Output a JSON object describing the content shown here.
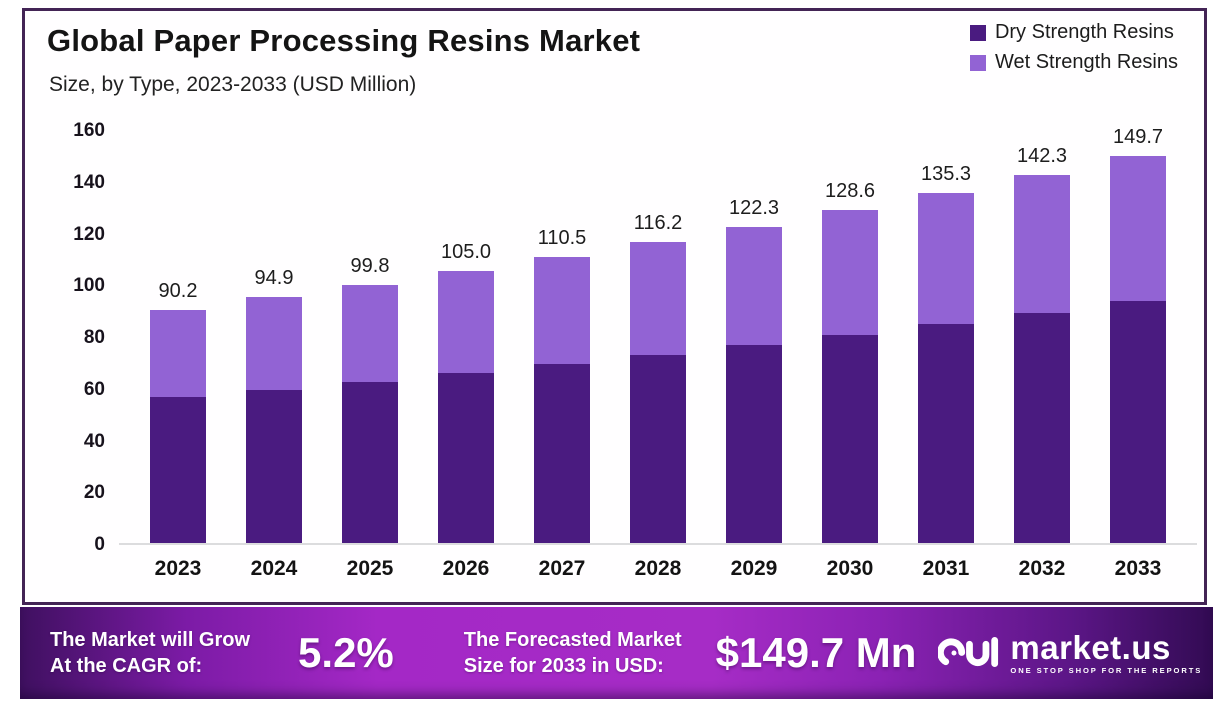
{
  "header": {
    "title": "Global Paper Processing Resins Market",
    "subtitle": "Size, by Type, 2023-2033 (USD Million)"
  },
  "legend": [
    {
      "label": "Dry Strength Resins",
      "color": "#4a1b80"
    },
    {
      "label": "Wet Strength Resins",
      "color": "#9263d4"
    }
  ],
  "chart_data": {
    "type": "bar",
    "stacked": true,
    "title": "Global Paper Processing Resins Market",
    "subtitle": "Size, by Type, 2023-2033 (USD Million)",
    "categories": [
      "2023",
      "2024",
      "2025",
      "2026",
      "2027",
      "2028",
      "2029",
      "2030",
      "2031",
      "2032",
      "2033"
    ],
    "series": [
      {
        "name": "Dry Strength Resins",
        "color": "#4a1b80",
        "values": [
          56.4,
          59.3,
          62.4,
          65.6,
          69.1,
          72.6,
          76.4,
          80.4,
          84.6,
          88.9,
          93.6
        ]
      },
      {
        "name": "Wet Strength Resins",
        "color": "#9263d4",
        "values": [
          33.8,
          35.6,
          37.4,
          39.4,
          41.4,
          43.6,
          45.9,
          48.2,
          50.7,
          53.4,
          56.1
        ]
      }
    ],
    "totals": [
      90.2,
      94.9,
      99.8,
      105.0,
      110.5,
      116.2,
      122.3,
      128.6,
      135.3,
      142.3,
      149.7
    ],
    "total_labels": [
      "90.2",
      "94.9",
      "99.8",
      "105.0",
      "110.5",
      "116.2",
      "122.3",
      "128.6",
      "135.3",
      "142.3",
      "149.7"
    ],
    "ylabel": "",
    "xlabel": "",
    "ylim": [
      0,
      160
    ],
    "yticks": [
      0,
      20,
      40,
      60,
      80,
      100,
      120,
      140,
      160
    ],
    "grid": false,
    "legend_position": "top-right"
  },
  "footer": {
    "cagr_label": "The Market will Grow\nAt the CAGR of:",
    "cagr_value": "5.2%",
    "forecast_label": "The Forecasted Market\nSize for 2033 in USD:",
    "forecast_value": "$149.7 Mn",
    "brand": {
      "name": "market.us",
      "tagline": "ONE STOP SHOP FOR THE REPORTS"
    }
  }
}
